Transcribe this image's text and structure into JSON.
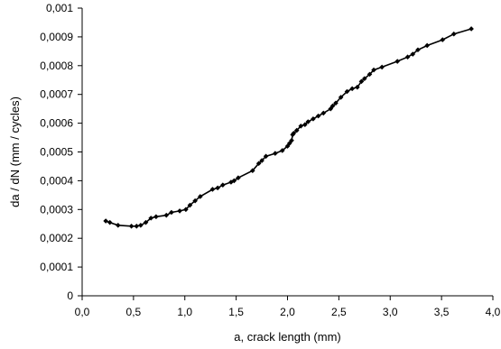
{
  "chart_data": {
    "type": "line",
    "title": "",
    "xlabel": "a, crack length  (mm)",
    "ylabel": "da / dN    (mm / cycles)",
    "xlim": [
      0.0,
      4.0
    ],
    "ylim": [
      0,
      0.001
    ],
    "x_ticks": [
      "0,0",
      "0,5",
      "1,0",
      "1,5",
      "2,0",
      "2,5",
      "3,0",
      "3,5",
      "4,0"
    ],
    "y_ticks": [
      "0",
      "0,0001",
      "0,0002",
      "0,0003",
      "0,0004",
      "0,0005",
      "0,0006",
      "0,0007",
      "0,0008",
      "0,0009",
      "0,001"
    ],
    "grid": false,
    "legend": "none",
    "series_color": "#000000",
    "marker": "diamond",
    "series": [
      {
        "x": [
          0.23,
          0.27,
          0.35,
          0.48,
          0.53,
          0.57,
          0.62,
          0.67,
          0.72,
          0.82,
          0.87,
          0.95,
          1.01,
          1.05,
          1.1,
          1.15,
          1.27,
          1.32,
          1.37,
          1.45,
          1.48,
          1.52,
          1.66,
          1.72,
          1.75,
          1.79,
          1.88,
          1.95,
          2.0,
          2.02,
          2.04,
          2.05,
          2.06,
          2.09,
          2.13,
          2.17,
          2.2,
          2.25,
          2.3,
          2.35,
          2.42,
          2.44,
          2.47,
          2.52,
          2.58,
          2.63,
          2.68,
          2.72,
          2.75,
          2.8,
          2.84,
          2.92,
          3.07,
          3.17,
          3.22,
          3.27,
          3.36,
          3.51,
          3.62,
          3.79
        ],
        "y": [
          0.00026,
          0.000255,
          0.000245,
          0.000242,
          0.000242,
          0.000245,
          0.000255,
          0.00027,
          0.000275,
          0.00028,
          0.00029,
          0.000295,
          0.0003,
          0.000315,
          0.00033,
          0.000345,
          0.00037,
          0.000375,
          0.000385,
          0.000395,
          0.0004,
          0.00041,
          0.000435,
          0.00046,
          0.00047,
          0.000485,
          0.000495,
          0.000505,
          0.00052,
          0.00053,
          0.00054,
          0.00056,
          0.000565,
          0.000575,
          0.00059,
          0.000595,
          0.000605,
          0.000615,
          0.000625,
          0.000635,
          0.00065,
          0.00066,
          0.00067,
          0.00069,
          0.00071,
          0.00072,
          0.000725,
          0.000745,
          0.000755,
          0.00077,
          0.000785,
          0.000795,
          0.000815,
          0.00083,
          0.00084,
          0.000855,
          0.00087,
          0.00089,
          0.00091,
          0.000928
        ]
      }
    ]
  }
}
